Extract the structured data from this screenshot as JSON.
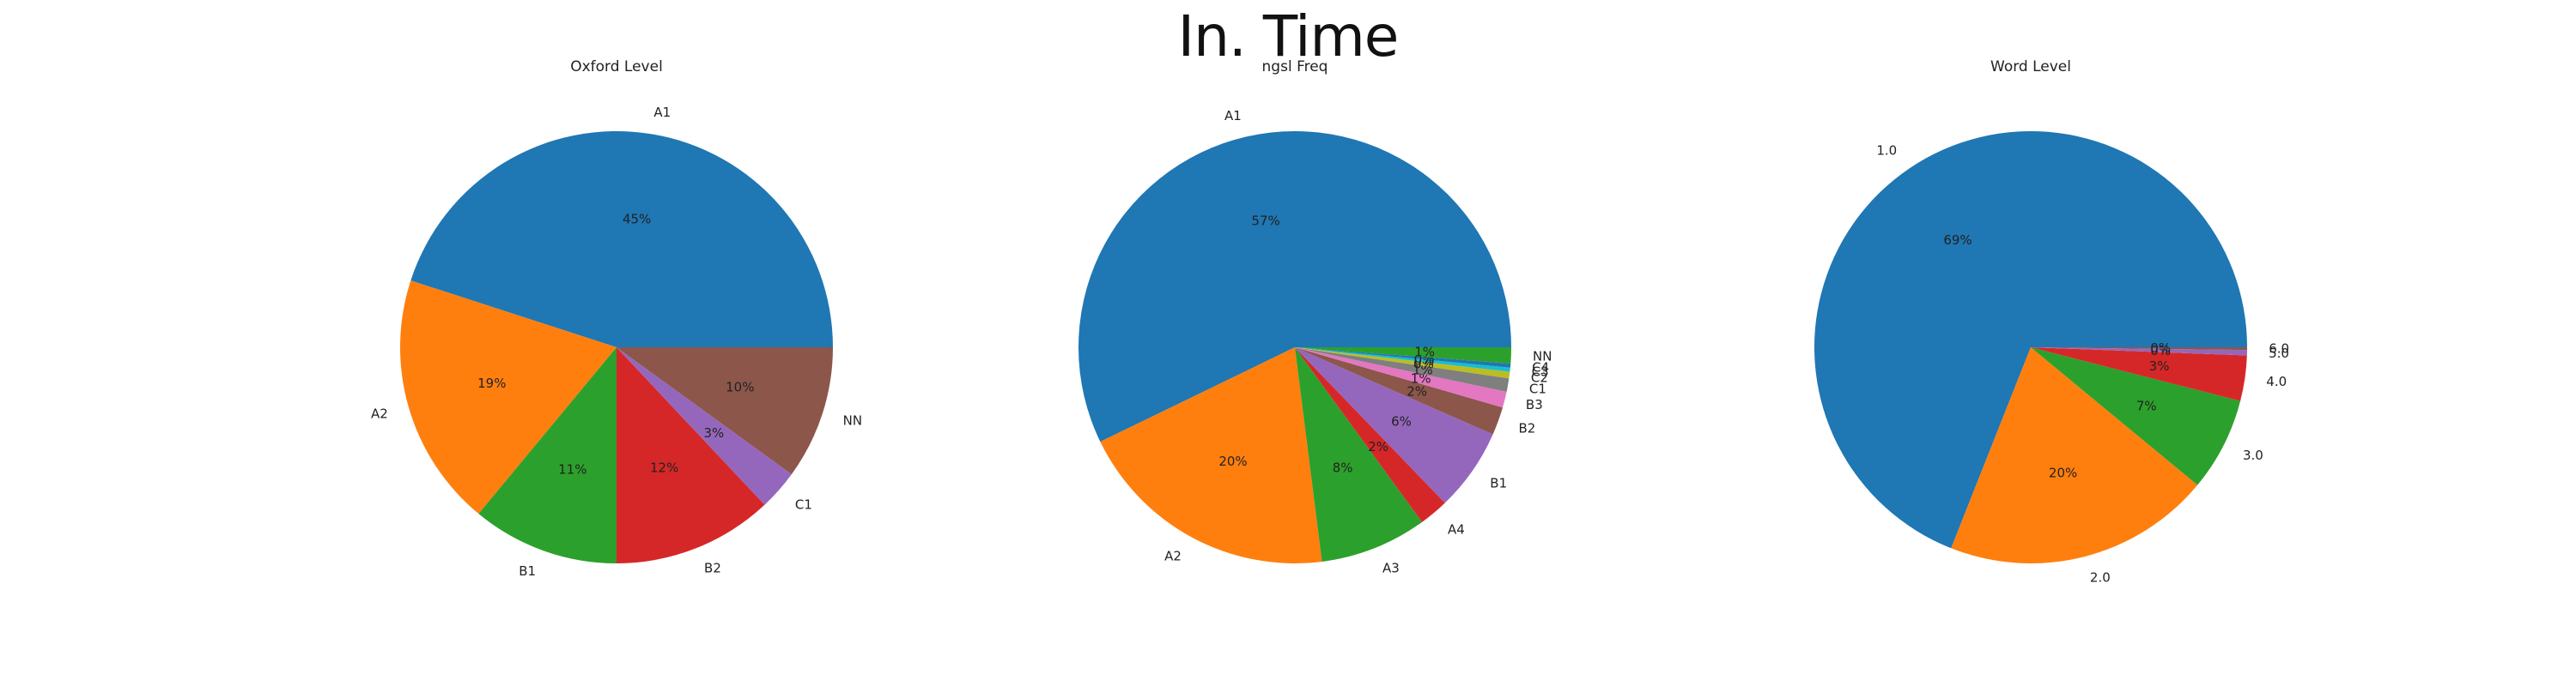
{
  "suptitle": "In. Time",
  "chart_data": [
    {
      "type": "pie",
      "title": "Oxford Level",
      "categories": [
        "A1",
        "A2",
        "B1",
        "B2",
        "C1",
        "NN"
      ],
      "values": [
        45,
        19,
        11,
        12,
        3,
        10
      ],
      "value_labels": [
        "45%",
        "19%",
        "11%",
        "12%",
        "3%",
        "10%"
      ],
      "colors": [
        "#1f77b4",
        "#ff7f0e",
        "#2ca02c",
        "#d62728",
        "#9467bd",
        "#8c564b"
      ],
      "start_angle_deg": 0,
      "direction": "counterclockwise"
    },
    {
      "type": "pie",
      "title": "ngsl Freq",
      "categories": [
        "A1",
        "A2",
        "A3",
        "A4",
        "B1",
        "B2",
        "B3",
        "C1",
        "C2",
        "C3",
        "C4",
        "NN"
      ],
      "values": [
        57.2,
        19.8,
        8.0,
        2.2,
        6.2,
        2.1,
        1.2,
        1.0,
        0.5,
        0.3,
        0.3,
        1.2
      ],
      "value_labels": [
        "57%",
        "20%",
        "8%",
        "2%",
        "6%",
        "2%",
        "1%",
        "1%",
        "0%",
        "0%",
        "0%",
        "1%"
      ],
      "colors": [
        "#1f77b4",
        "#ff7f0e",
        "#2ca02c",
        "#d62728",
        "#9467bd",
        "#8c564b",
        "#e377c2",
        "#7f7f7f",
        "#bcbd22",
        "#17becf",
        "#1f77b4",
        "#2ca02c"
      ],
      "start_angle_deg": 0,
      "direction": "counterclockwise"
    },
    {
      "type": "pie",
      "title": "Word Level",
      "categories": [
        "1.0",
        "2.0",
        "3.0",
        "4.0",
        "5.0",
        "6.0"
      ],
      "values": [
        69.0,
        20.0,
        7.0,
        3.4,
        0.4,
        0.2
      ],
      "value_labels": [
        "69%",
        "20%",
        "7%",
        "3%",
        "0%",
        "0%"
      ],
      "colors": [
        "#1f77b4",
        "#ff7f0e",
        "#2ca02c",
        "#d62728",
        "#9467bd",
        "#8c564b"
      ],
      "start_angle_deg": 0,
      "direction": "counterclockwise"
    }
  ]
}
